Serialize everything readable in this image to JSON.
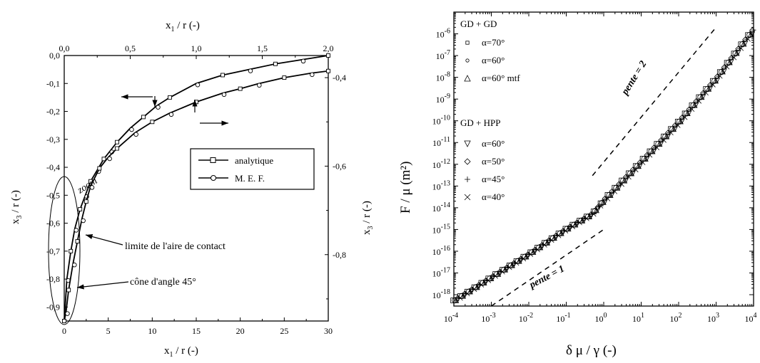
{
  "chart_data": [
    {
      "type": "line",
      "top_xlabel_main": "x",
      "top_xlabel_sub": "1",
      "top_xlabel_tail": " / r  (-)",
      "bottom_xlabel_main": "x",
      "bottom_xlabel_sub": "1",
      "bottom_xlabel_tail": " / r  (-)",
      "left_ylabel_main": "x",
      "left_ylabel_sub": "3",
      "left_ylabel_tail": " / r  (-)",
      "right_ylabel_main": "x",
      "right_ylabel_sub": "3",
      "right_ylabel_tail": " / r  (-)",
      "top_x_ticks": [
        "0,0",
        "0,5",
        "1,0",
        "1,5",
        "2,0"
      ],
      "top_xlim": [
        0,
        2
      ],
      "bottom_x_ticks": [
        "0",
        "5",
        "10",
        "15",
        "20",
        "25",
        "30"
      ],
      "bottom_xlim": [
        0,
        30
      ],
      "left_y_ticks": [
        "0,0",
        "-0,1",
        "-0,2",
        "-0,3",
        "-0,4",
        "-0,5",
        "-0,6",
        "-0,7",
        "-0,8",
        "-0,9"
      ],
      "left_ylim": [
        -0.95,
        0
      ],
      "right_y_ticks": [
        "-0,4",
        "-0,6",
        "-0,8"
      ],
      "right_ylim": [
        -0.95,
        -0.35
      ],
      "legend": [
        {
          "label": "analytique",
          "marker": "square"
        },
        {
          "label": "M. E. F.",
          "marker": "circle"
        }
      ],
      "annotations": {
        "zoom": "zoom",
        "contact_limit": "limite de l'aire de contact",
        "cone": "cône d'angle 45°"
      },
      "series": [
        {
          "axes": "top-left",
          "x": [
            0.0,
            0.02,
            0.05,
            0.08,
            0.12,
            0.16,
            0.2,
            0.25,
            0.3,
            0.35,
            0.4,
            0.5,
            0.6,
            0.7,
            0.8,
            1.0,
            1.2,
            1.4,
            1.6,
            1.8,
            2.0
          ],
          "y": [
            -0.95,
            -0.8,
            -0.7,
            -0.62,
            -0.55,
            -0.5,
            -0.45,
            -0.41,
            -0.37,
            -0.34,
            -0.31,
            -0.26,
            -0.22,
            -0.18,
            -0.15,
            -0.1,
            -0.07,
            -0.05,
            -0.03,
            -0.015,
            0.0
          ]
        },
        {
          "axes": "bottom-right",
          "x": [
            0.0,
            0.2,
            0.5,
            1.0,
            1.5,
            2.0,
            2.5,
            3.0,
            4.0,
            5.0,
            6.0,
            8.0,
            10.0,
            12.0,
            15.0,
            18.0,
            20.0,
            22.0,
            25.0,
            28.0,
            30.0
          ],
          "y": [
            -0.95,
            -0.93,
            -0.88,
            -0.82,
            -0.77,
            -0.72,
            -0.68,
            -0.645,
            -0.605,
            -0.58,
            -0.56,
            -0.525,
            -0.5,
            -0.48,
            -0.455,
            -0.435,
            -0.425,
            -0.414,
            -0.4,
            -0.39,
            -0.385
          ]
        }
      ]
    },
    {
      "type": "scatter",
      "scale": "log-log",
      "xlabel": "δ μ / γ  (-)",
      "ylabel": "F / μ  (m²)",
      "x_ticks_exp": [
        "-4",
        "-3",
        "-2",
        "-1",
        "0",
        "1",
        "2",
        "3",
        "4"
      ],
      "y_ticks_exp": [
        "-18",
        "-17",
        "-16",
        "-15",
        "-14",
        "-13",
        "-12",
        "-11",
        "-10",
        "-9",
        "-8",
        "-7",
        "-6"
      ],
      "xlim": [
        0.0001,
        10000
      ],
      "ylim": [
        3e-19,
        1e-05
      ],
      "legend": {
        "group1_title": "GD + GD",
        "group1": [
          {
            "label": "α=70°",
            "marker": "small-square"
          },
          {
            "label": "α=60°",
            "marker": "small-circle"
          },
          {
            "label": "α=60° mtf",
            "marker": "triangle-up"
          }
        ],
        "group2_title": "GD + HPP",
        "group2": [
          {
            "label": "α=60°",
            "marker": "triangle-down"
          },
          {
            "label": "α=50°",
            "marker": "diamond"
          },
          {
            "label": "α=45°",
            "marker": "plus"
          },
          {
            "label": "α=40°",
            "marker": "cross"
          }
        ]
      },
      "slope_labels": {
        "slope1": "pente = 1",
        "slope2": "pente = 2"
      },
      "reference_lines": [
        {
          "slope": 1,
          "x": [
            0.001,
            1
          ],
          "y": [
            3e-19,
            1e-15
          ]
        },
        {
          "slope": 2,
          "x": [
            0.5,
            1000
          ],
          "y": [
            3e-13,
            2e-06
          ]
        }
      ],
      "data_curve": {
        "x": [
          0.0001,
          0.001,
          0.01,
          0.1,
          0.5,
          1,
          10,
          100,
          1000,
          10000
        ],
        "y": [
          5e-19,
          6e-18,
          7e-17,
          1e-15,
          5e-15,
          2e-14,
          1.2e-12,
          8e-11,
          8e-09,
          1.5e-06
        ]
      }
    }
  ]
}
